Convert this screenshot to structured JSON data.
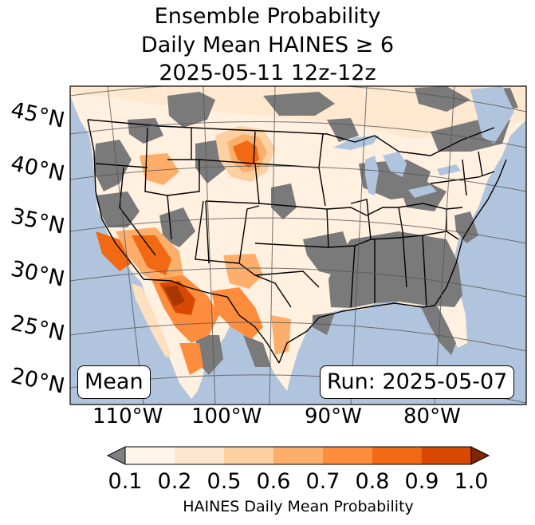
{
  "title": {
    "line1": "Ensemble Probability",
    "line2": "Daily Mean HAINES ≥ 6",
    "line3": "2025-05-11 12z-12z"
  },
  "lat_labels": [
    "45°N",
    "40°N",
    "35°N",
    "30°N",
    "25°N",
    "20°N"
  ],
  "lon_labels": [
    "110°W",
    "100°W",
    "90°W",
    "80°W"
  ],
  "stat_box": "Mean",
  "run_box": "Run: 2025-05-07",
  "colorbar": {
    "ticks": [
      "0.1",
      "0.2",
      "0.5",
      "0.6",
      "0.7",
      "0.8",
      "0.9",
      "1.0"
    ],
    "label": "HAINES Daily Mean Probability",
    "colors": [
      "#fff5eb",
      "#fee6ce",
      "#fdd0a2",
      "#fdae6b",
      "#fd8d3c",
      "#f16913",
      "#d94801",
      "#a63603"
    ],
    "under_color": "#808080",
    "over_color": "#7f2704"
  },
  "colors": {
    "ocean": "#b0c4de",
    "land_gray": "#7a7a7a",
    "border": "#000000",
    "grid": "#555555"
  }
}
